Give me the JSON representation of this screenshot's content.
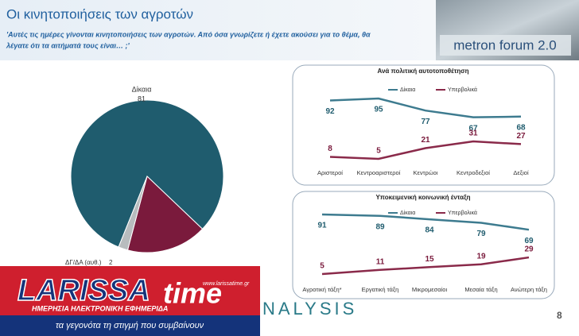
{
  "header": {
    "title": "Οι κινητοποιήσεις των αγροτών",
    "subtitle_line1": "'Αυτές τις ημέρες γίνονται κινητοποιήσεις των αγροτών. Από όσα γνωρίζετε ή έχετε ακούσει για το θέμα, θα",
    "subtitle_line2": "λέγατε ότι τα αιτήματά τους είναι… ;'",
    "logo": "metron forum 2.0"
  },
  "chart_data": [
    {
      "type": "pie",
      "categories": [
        "Δίκαια",
        null,
        "ΔΓ/ΔΑ (αυθ.)"
      ],
      "values": [
        81,
        17,
        2
      ],
      "colors": [
        "#1f5c6e",
        "#7a1a3c",
        "#b8bcbe"
      ]
    },
    {
      "type": "line",
      "title": "Ανά πολιτική αυτοτοποθέτηση",
      "categories": [
        "Αριστεροί",
        "Κεντροαριστεροί",
        "Κεντρώοι",
        "Κεντροδεξιοί",
        "Δεξιοί"
      ],
      "series": [
        {
          "name": "Δίκαια",
          "color": "#3d7b8f",
          "values": [
            92,
            95,
            77,
            67,
            68
          ]
        },
        {
          "name": "Υπερβολικά",
          "color": "#8a2a4a",
          "values": [
            8,
            5,
            21,
            31,
            27
          ]
        }
      ]
    },
    {
      "type": "line",
      "title": "Υποκειμενική κοινωνική ένταξη",
      "categories": [
        "Αγροτική τάξη*",
        "Εργατική τάξη",
        "Μικρομεσαίοι",
        "Μεσαία τάξη",
        "Ανώτερη τάξη"
      ],
      "series": [
        {
          "name": "Δίκαια",
          "color": "#3d7b8f",
          "values": [
            91,
            89,
            84,
            79,
            69
          ]
        },
        {
          "name": "Υπερβολικά",
          "color": "#8a2a4a",
          "values": [
            5,
            11,
            15,
            19,
            29
          ]
        }
      ]
    }
  ],
  "footer": {
    "brand": "NALYSIS",
    "page": "8"
  },
  "overlay": {
    "name1": "LARISSA",
    "name2": "time",
    "url": "www.larissatime.gr",
    "tagline": "ΗΜΕΡΗΣΙΑ ΗΛΕΚΤΡΟΝΙΚΗ ΕΦΗΜΕΡΙΔΑ",
    "slogan": "τα γεγονότα τη στιγμή που συμβαίνουν"
  }
}
